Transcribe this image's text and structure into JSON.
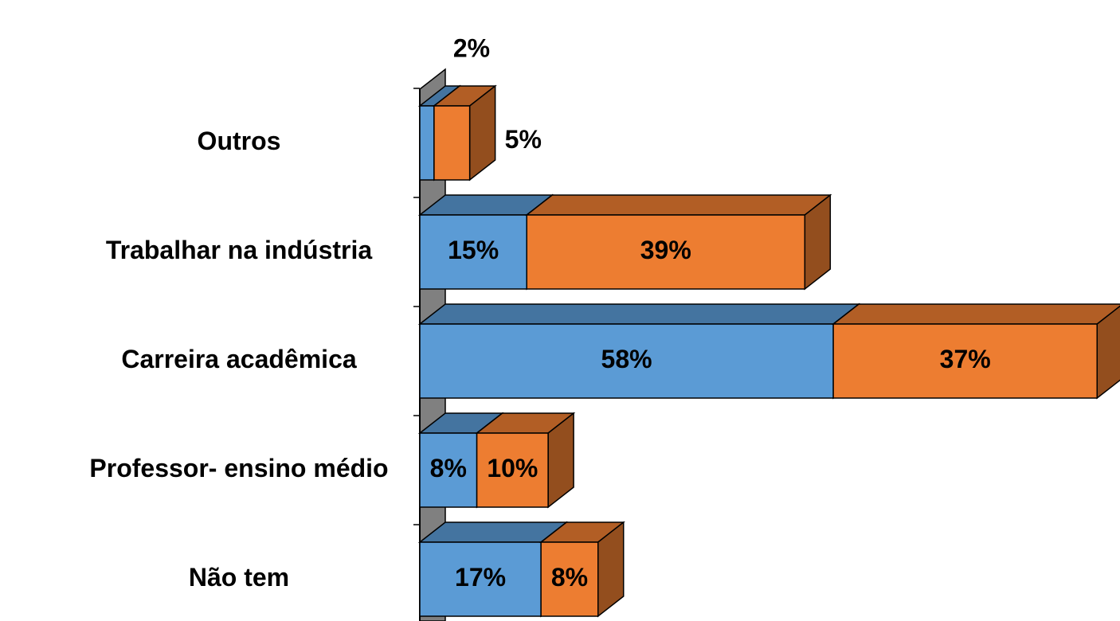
{
  "chart_data": {
    "type": "bar3d_stacked_horizontal",
    "categories": [
      "Outros",
      "Trabalhar na indústria",
      "Carreira acadêmica",
      "Professor- ensino médio",
      "Não tem"
    ],
    "series": [
      {
        "color": "#5b9bd5",
        "values": [
          2,
          15,
          58,
          8,
          17
        ],
        "value_labels": [
          "2%",
          "15%",
          "58%",
          "8%",
          "17%"
        ]
      },
      {
        "color": "#ed7d31",
        "values": [
          5,
          39,
          37,
          10,
          8
        ],
        "value_labels": [
          "5%",
          "39%",
          "37%",
          "10%",
          "8%"
        ]
      }
    ]
  }
}
